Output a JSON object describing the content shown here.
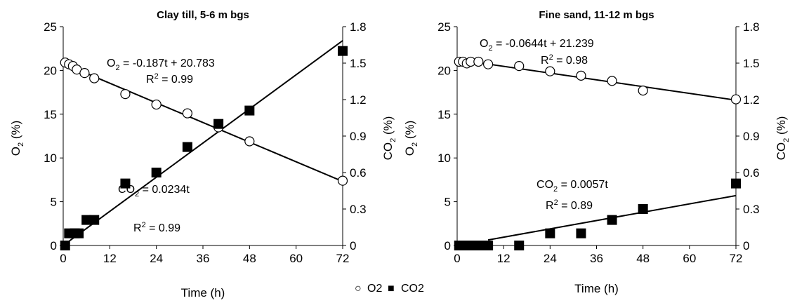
{
  "legend": {
    "o2_marker": "○",
    "o2_label": "O2",
    "co2_marker": "■",
    "co2_label": "CO2"
  },
  "chart_data": [
    {
      "type": "scatter",
      "title": "Clay till, 5-6 m bgs",
      "xlabel": "Time (h)",
      "ylabel": "O2 (%)",
      "y2label": "CO2 (%)",
      "xlim": [
        0,
        72
      ],
      "ylim": [
        0,
        25
      ],
      "y2lim": [
        0,
        1.8
      ],
      "xticks": [
        "0",
        "12",
        "24",
        "36",
        "48",
        "60",
        "72"
      ],
      "yticks": [
        "0",
        "5",
        "10",
        "15",
        "20",
        "25"
      ],
      "y2ticks": [
        "0",
        "0.3",
        "0.6",
        "0.9",
        "1.2",
        "1.5",
        "1.8"
      ],
      "grid": false,
      "legend_position": "bottom",
      "series": [
        {
          "name": "O2",
          "axis": "left",
          "marker": "open-circle",
          "x": [
            0.5,
            1.5,
            2.5,
            3.5,
            5.5,
            8,
            16,
            24,
            32,
            40,
            48,
            72
          ],
          "y": [
            20.9,
            20.7,
            20.5,
            20.1,
            19.7,
            19.1,
            17.3,
            16.1,
            15.1,
            13.5,
            11.9,
            7.4
          ]
        },
        {
          "name": "CO2",
          "axis": "right",
          "marker": "filled-square",
          "x": [
            0.5,
            1.5,
            3,
            4,
            6,
            8,
            16,
            24,
            32,
            40,
            48,
            72
          ],
          "y": [
            0,
            0.1,
            0.1,
            0.1,
            0.21,
            0.21,
            0.51,
            0.6,
            0.81,
            1.0,
            1.11,
            1.6
          ]
        }
      ],
      "fits": [
        {
          "axis": "left",
          "slope": -0.187,
          "intercept": 20.783,
          "x_range": [
            0,
            72
          ],
          "equation": "O2 = -0.187t + 20.783",
          "r2": "R2 = 0.99"
        },
        {
          "axis": "right",
          "slope": 0.0234,
          "intercept": 0,
          "x_range": [
            0,
            72
          ],
          "equation": "CO2 = 0.0234t",
          "r2": "R2 = 0.99"
        }
      ]
    },
    {
      "type": "scatter",
      "title": "Fine sand, 11-12 m bgs",
      "xlabel": "Time (h)",
      "ylabel": "O2 (%)",
      "y2label": "CO2 (%)",
      "xlim": [
        0,
        72
      ],
      "ylim": [
        0,
        25
      ],
      "y2lim": [
        0,
        1.8
      ],
      "xticks": [
        "0",
        "12",
        "24",
        "36",
        "48",
        "60",
        "72"
      ],
      "yticks": [
        "0",
        "5",
        "10",
        "15",
        "20",
        "25"
      ],
      "y2ticks": [
        "0",
        "0.3",
        "0.6",
        "0.9",
        "1.2",
        "1.5",
        "1.8"
      ],
      "grid": false,
      "series": [
        {
          "name": "O2",
          "axis": "left",
          "marker": "open-circle",
          "x": [
            0.5,
            1.5,
            2.5,
            3.5,
            5.5,
            8,
            16,
            24,
            32,
            40,
            48,
            72
          ],
          "y": [
            21.0,
            21.0,
            20.8,
            21.0,
            21.0,
            20.7,
            20.5,
            19.9,
            19.4,
            18.8,
            17.7,
            16.7
          ]
        },
        {
          "name": "CO2",
          "axis": "right",
          "marker": "filled-square",
          "x": [
            0.5,
            1.5,
            3,
            4,
            6,
            8,
            16,
            24,
            32,
            40,
            48,
            72
          ],
          "y": [
            0,
            0,
            0,
            0,
            0,
            0,
            0,
            0.1,
            0.1,
            0.21,
            0.3,
            0.51
          ]
        }
      ],
      "fits": [
        {
          "axis": "left",
          "slope": -0.0644,
          "intercept": 21.239,
          "x_range": [
            0,
            72
          ],
          "equation": "O2 = -0.0644t + 21.239",
          "r2": "R2 = 0.98"
        },
        {
          "axis": "right",
          "slope": 0.0057,
          "intercept": 0,
          "x_range": [
            8,
            72
          ],
          "equation": "CO2 = 0.0057t",
          "r2": "R2 = 0.89"
        }
      ]
    }
  ]
}
